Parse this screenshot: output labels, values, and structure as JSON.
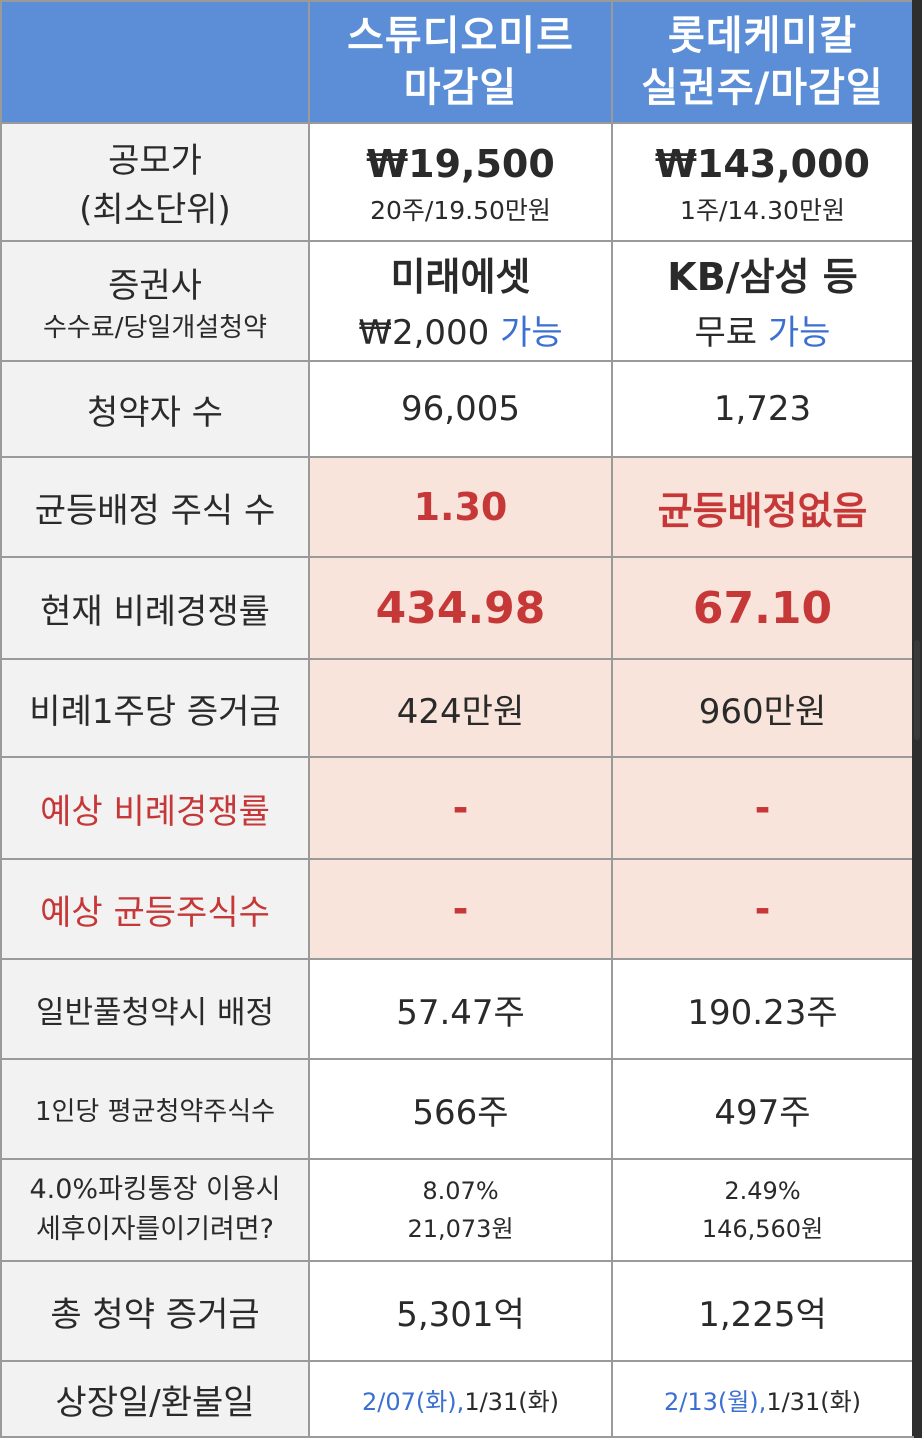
{
  "header": {
    "col1_line1": "스튜디오미르",
    "col1_line2": "마감일",
    "col2_line1": "롯데케미칼",
    "col2_line2": "실권주/마감일"
  },
  "rows": {
    "price": {
      "label1": "공모가",
      "label2": "(최소단위)",
      "col1_main": "₩19,500",
      "col1_sub": "20주/19.50만원",
      "col2_main": "₩143,000",
      "col2_sub": "1주/14.30만원"
    },
    "broker": {
      "label1": "증권사",
      "label2": "수수료/당일개설청약",
      "col1_main": "미래에셋",
      "col1_fee": "₩2,000",
      "col1_status": "가능",
      "col2_main": "KB/삼성 등",
      "col2_fee": "무료",
      "col2_status": "가능"
    },
    "applicants": {
      "label": "청약자 수",
      "col1": "96,005",
      "col2": "1,723"
    },
    "equal_alloc": {
      "label": "균등배정 주식 수",
      "col1": "1.30",
      "col2": "균등배정없음"
    },
    "competition": {
      "label": "현재 비례경쟁률",
      "col1": "434.98",
      "col2": "67.10"
    },
    "deposit_per_share": {
      "label": "비례1주당 증거금",
      "col1": "424만원",
      "col2": "960만원"
    },
    "expected_competition": {
      "label": "예상 비례경쟁률",
      "col1": "-",
      "col2": "-"
    },
    "expected_equal": {
      "label": "예상 균등주식수",
      "col1": "-",
      "col2": "-"
    },
    "full_alloc": {
      "label": "일반풀청약시 배정",
      "col1": "57.47주",
      "col2": "190.23주"
    },
    "avg_shares": {
      "label": "1인당 평균청약주식수",
      "col1": "566주",
      "col2": "497주"
    },
    "parking": {
      "label1": "4.0%파킹통장 이용시",
      "label2": "세후이자를이기려면?",
      "col1_line1": "8.07%",
      "col1_line2": "21,073원",
      "col2_line1": "2.49%",
      "col2_line2": "146,560원"
    },
    "total_deposit": {
      "label": "총 청약 증거금",
      "col1": "5,301억",
      "col2": "1,225억"
    },
    "listing": {
      "label": "상장일/환불일",
      "col1_date": "2/07(화),",
      "col1_refund": "1/31(화)",
      "col2_date": "2/13(월),",
      "col2_refund": "1/31(화)"
    }
  },
  "colors": {
    "header_bg": "#5b8ed6",
    "highlight_bg": "#f9e4dc",
    "accent_red": "#c63838",
    "accent_blue": "#3b6fd1"
  }
}
